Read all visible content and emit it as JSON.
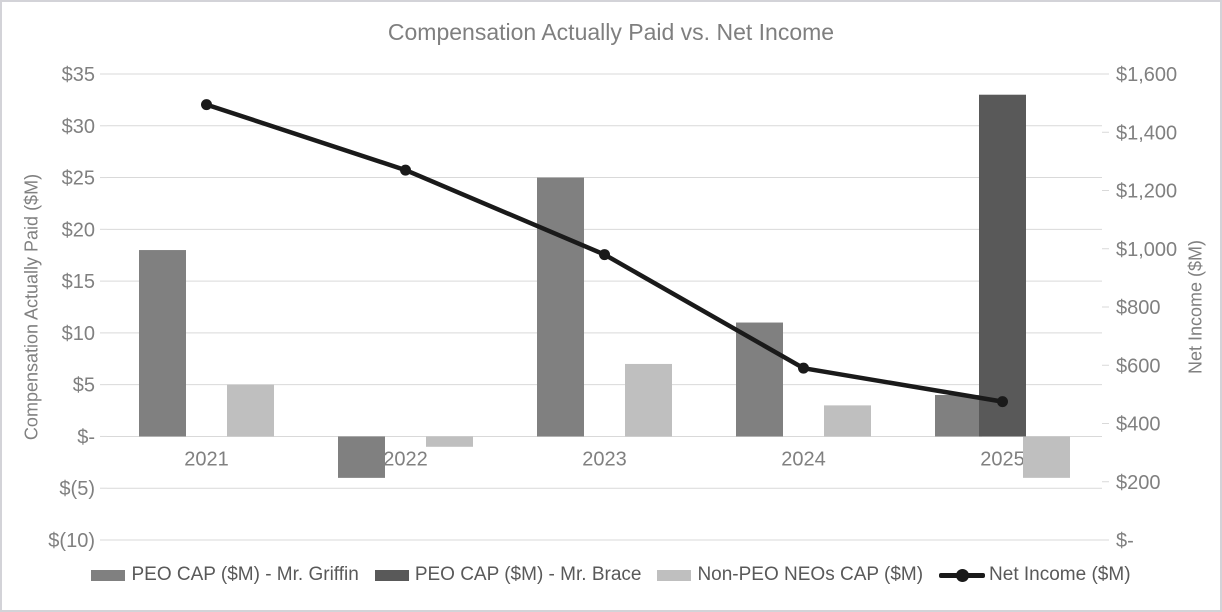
{
  "chart_data": {
    "type": "bar",
    "subtype": "combo-bar-line-dual-axis",
    "title": "Compensation Actually Paid vs. Net Income",
    "categories": [
      "2021",
      "2022",
      "2023",
      "2024",
      "2025"
    ],
    "series": [
      {
        "name": "PEO CAP ($M) - Mr. Griffin",
        "type": "bar",
        "axis": "left",
        "color": "#808080",
        "values": [
          18,
          -4,
          25,
          11,
          4
        ]
      },
      {
        "name": "PEO CAP ($M) - Mr. Brace",
        "type": "bar",
        "axis": "left",
        "color": "#595959",
        "values": [
          null,
          null,
          null,
          null,
          33
        ]
      },
      {
        "name": "Non-PEO NEOs CAP ($M)",
        "type": "bar",
        "axis": "left",
        "color": "#bfbfbf",
        "values": [
          5,
          -1,
          7,
          3,
          -4
        ]
      },
      {
        "name": "Net Income ($M)",
        "type": "line",
        "axis": "right",
        "color": "#1a1a1a",
        "values": [
          1495,
          1270,
          980,
          590,
          475
        ]
      }
    ],
    "left_axis": {
      "label": "Compensation Actually Paid ($M)",
      "min": -10,
      "max": 35,
      "step": 5,
      "tick_labels": [
        "$35",
        "$30",
        "$25",
        "$20",
        "$15",
        "$10",
        "$5",
        "$-",
        "$(5)",
        "$(10)"
      ]
    },
    "right_axis": {
      "label": "Net Income ($M)",
      "min": 0,
      "max": 1600,
      "step": 200,
      "tick_labels": [
        "$1,600",
        "$1,400",
        "$1,200",
        "$1,000",
        "$800",
        "$600",
        "$400",
        "$200",
        "$-"
      ]
    },
    "grid": true,
    "legend_position": "bottom",
    "colors": {
      "gridline": "#d9d9d9",
      "tick_text": "#808080",
      "title_text": "#7f7f7f",
      "legend_text": "#595959",
      "background": "#ffffff",
      "border": "#d3d3d8"
    }
  }
}
